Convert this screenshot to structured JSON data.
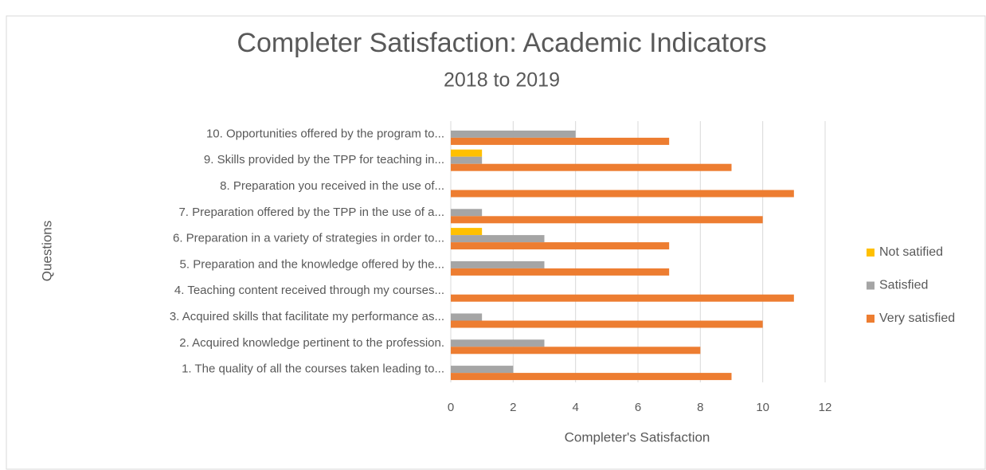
{
  "chart_data": {
    "type": "hbar",
    "title": "Completer Satisfaction: Academic Indicators",
    "subtitle": "2018 to 2019",
    "x_label": "Completer's Satisfaction",
    "y_label": "Questions",
    "categories": [
      "1.  The quality of all the courses taken leading to...",
      "2.  Acquired knowledge pertinent to the profession.",
      "3.  Acquired skills that facilitate my performance as...",
      "4.  Teaching content received through my courses...",
      "5.  Preparation and the knowledge offered by the...",
      "6.  Preparation in a variety of strategies in order to...",
      "7.  Preparation offered by the TPP in the use of a...",
      "8.  Preparation you received in the use of...",
      "9.  Skills provided by the TPP for teaching in...",
      "10. Opportunities offered by the program to..."
    ],
    "series": [
      {
        "name": "Not satified",
        "color": "#ffc000",
        "values": [
          0,
          0,
          0,
          0,
          0,
          1,
          0,
          0,
          1,
          0
        ]
      },
      {
        "name": "Satisfied",
        "color": "#a5a5a5",
        "values": [
          2,
          3,
          1,
          0,
          3,
          3,
          1,
          0,
          1,
          4
        ]
      },
      {
        "name": "Very satisfied",
        "color": "#ed7d31",
        "values": [
          9,
          8,
          10,
          11,
          7,
          7,
          10,
          11,
          9,
          7
        ]
      }
    ],
    "xlim": [
      0,
      12
    ],
    "xticks": [
      0,
      2,
      4,
      6,
      8,
      10,
      12
    ],
    "grid": true,
    "legend": "right"
  }
}
